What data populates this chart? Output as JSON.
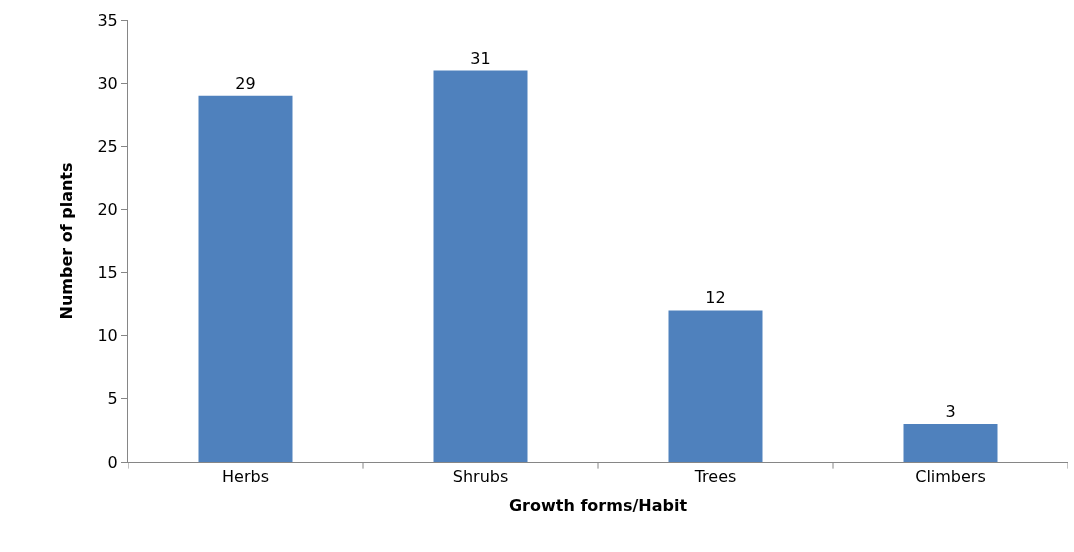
{
  "chart_data": {
    "type": "bar",
    "xlabel": "Growth forms/Habit",
    "ylabel": "Number of plants",
    "categories": [
      "Herbs",
      "Shrubs",
      "Trees",
      "Climbers"
    ],
    "values": [
      29,
      31,
      12,
      3
    ],
    "color": "#4f81bd",
    "data_labels": true,
    "ylim": [
      0,
      35
    ],
    "yticks": [
      0,
      5,
      10,
      15,
      20,
      25,
      30,
      35
    ]
  }
}
